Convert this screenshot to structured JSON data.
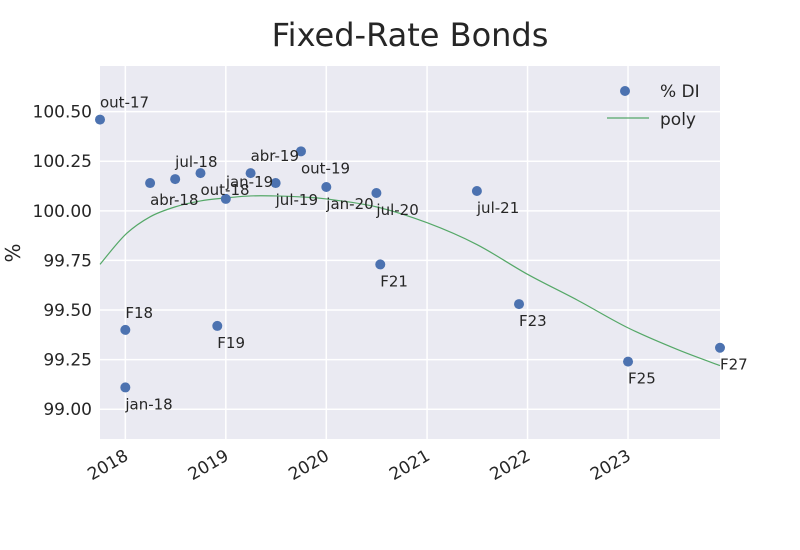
{
  "chart_data": {
    "type": "scatter",
    "title": "Fixed-Rate Bonds",
    "xlabel": "",
    "ylabel": "%",
    "x_axis_type": "date",
    "xlim": [
      "2017-10-01",
      "2023-12-01"
    ],
    "ylim": [
      98.85,
      100.73
    ],
    "x_ticks": [
      {
        "value": "2018-01-01",
        "label": "2018"
      },
      {
        "value": "2019-01-01",
        "label": "2019"
      },
      {
        "value": "2020-01-01",
        "label": "2020"
      },
      {
        "value": "2021-01-01",
        "label": "2021"
      },
      {
        "value": "2022-01-01",
        "label": "2022"
      },
      {
        "value": "2023-01-01",
        "label": "2023"
      }
    ],
    "y_ticks": [
      {
        "value": 99.0,
        "label": "99.00"
      },
      {
        "value": 99.25,
        "label": "99.25"
      },
      {
        "value": 99.5,
        "label": "99.50"
      },
      {
        "value": 99.75,
        "label": "99.75"
      },
      {
        "value": 100.0,
        "label": "100.00"
      },
      {
        "value": 100.25,
        "label": "100.25"
      },
      {
        "value": 100.5,
        "label": "100.50"
      }
    ],
    "grid": true,
    "legend_position": "top-right",
    "series": [
      {
        "name": "% DI",
        "kind": "scatter",
        "color": "#4c72b0",
        "points": [
          {
            "x": "2017-10-01",
            "y": 100.46,
            "label": "out-17",
            "label_pos": "above"
          },
          {
            "x": "2018-01-01",
            "y": 99.11,
            "label": "jan-18",
            "label_pos": "below"
          },
          {
            "x": "2018-01-01",
            "y": 99.4,
            "label": "F18",
            "label_pos": "above"
          },
          {
            "x": "2018-04-01",
            "y": 100.14,
            "label": "abr-18",
            "label_pos": "below"
          },
          {
            "x": "2018-07-01",
            "y": 100.16,
            "label": "jul-18",
            "label_pos": "above"
          },
          {
            "x": "2018-10-01",
            "y": 100.19,
            "label": "out-18",
            "label_pos": "below"
          },
          {
            "x": "2018-12-01",
            "y": 99.42,
            "label": "F19",
            "label_pos": "below"
          },
          {
            "x": "2019-01-01",
            "y": 100.06,
            "label": "jan-19",
            "label_pos": "above"
          },
          {
            "x": "2019-04-01",
            "y": 100.19,
            "label": "abr-19",
            "label_pos": "above"
          },
          {
            "x": "2019-07-01",
            "y": 100.14,
            "label": "jul-19",
            "label_pos": "below"
          },
          {
            "x": "2019-10-01",
            "y": 100.3,
            "label": "out-19",
            "label_pos": "below"
          },
          {
            "x": "2020-01-01",
            "y": 100.12,
            "label": "jan-20",
            "label_pos": "below"
          },
          {
            "x": "2020-07-01",
            "y": 100.09,
            "label": "jul-20",
            "label_pos": "below"
          },
          {
            "x": "2020-07-15",
            "y": 99.73,
            "label": "F21",
            "label_pos": "below"
          },
          {
            "x": "2021-07-01",
            "y": 100.1,
            "label": "jul-21",
            "label_pos": "below"
          },
          {
            "x": "2021-12-01",
            "y": 99.53,
            "label": "F23",
            "label_pos": "below"
          },
          {
            "x": "2023-01-01",
            "y": 99.24,
            "label": "F25",
            "label_pos": "below"
          },
          {
            "x": "2023-12-01",
            "y": 99.31,
            "label": "F27",
            "label_pos": "below"
          }
        ]
      },
      {
        "name": "poly",
        "kind": "line",
        "color": "#55a868",
        "points": [
          {
            "x": "2017-10-01",
            "y": 99.73
          },
          {
            "x": "2018-01-01",
            "y": 99.88
          },
          {
            "x": "2018-04-01",
            "y": 99.97
          },
          {
            "x": "2018-07-01",
            "y": 100.02
          },
          {
            "x": "2018-10-01",
            "y": 100.05
          },
          {
            "x": "2019-01-01",
            "y": 100.065
          },
          {
            "x": "2019-04-01",
            "y": 100.075
          },
          {
            "x": "2019-07-01",
            "y": 100.075
          },
          {
            "x": "2019-10-01",
            "y": 100.07
          },
          {
            "x": "2020-01-01",
            "y": 100.06
          },
          {
            "x": "2020-07-01",
            "y": 100.02
          },
          {
            "x": "2021-01-01",
            "y": 99.94
          },
          {
            "x": "2021-07-01",
            "y": 99.83
          },
          {
            "x": "2022-01-01",
            "y": 99.68
          },
          {
            "x": "2022-07-01",
            "y": 99.55
          },
          {
            "x": "2023-01-01",
            "y": 99.41
          },
          {
            "x": "2023-07-01",
            "y": 99.3
          },
          {
            "x": "2023-12-01",
            "y": 99.22
          }
        ]
      }
    ]
  }
}
